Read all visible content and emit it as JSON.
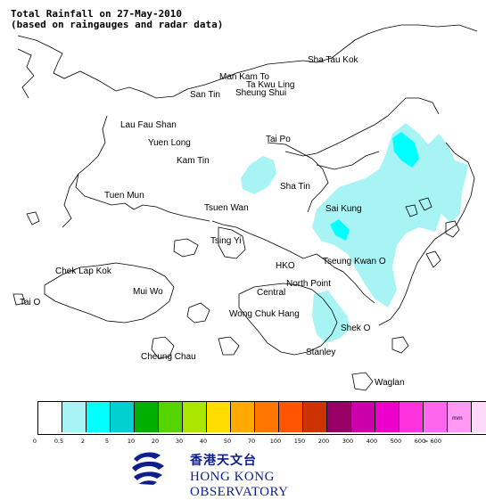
{
  "title": {
    "line1": "Total Rainfall on 27-May-2010",
    "line2": "(based on raingauges and radar data)"
  },
  "places": [
    {
      "id": "sha-tau-kok",
      "label": "Sha Tau Kok"
    },
    {
      "id": "man-kam-to",
      "label": "Man Kam To"
    },
    {
      "id": "ta-kwu-ling",
      "label": "Ta Kwu Ling"
    },
    {
      "id": "san-tin",
      "label": "San Tin"
    },
    {
      "id": "sheung-shui",
      "label": "Sheung Shui"
    },
    {
      "id": "lau-fau-shan",
      "label": "Lau Fau Shan"
    },
    {
      "id": "yuen-long",
      "label": "Yuen Long"
    },
    {
      "id": "tai-po",
      "label": "Tai Po"
    },
    {
      "id": "kam-tin",
      "label": "Kam Tin"
    },
    {
      "id": "sha-tin",
      "label": "Sha Tin"
    },
    {
      "id": "tuen-mun",
      "label": "Tuen Mun"
    },
    {
      "id": "tsuen-wan",
      "label": "Tsuen Wan"
    },
    {
      "id": "sai-kung",
      "label": "Sai Kung"
    },
    {
      "id": "tsing-yi",
      "label": "Tsing Yi"
    },
    {
      "id": "chek-lap-kok",
      "label": "Chek Lap Kok"
    },
    {
      "id": "hko",
      "label": "HKO"
    },
    {
      "id": "tseung-kwan-o",
      "label": "Tseung Kwan O"
    },
    {
      "id": "north-point",
      "label": "North Point"
    },
    {
      "id": "mui-wo",
      "label": "Mui Wo"
    },
    {
      "id": "central",
      "label": "Central"
    },
    {
      "id": "tai-o",
      "label": "Tai O"
    },
    {
      "id": "wong-chuk-hang",
      "label": "Wong Chuk Hang"
    },
    {
      "id": "shek-o",
      "label": "Shek O"
    },
    {
      "id": "cheung-chau",
      "label": "Cheung Chau"
    },
    {
      "id": "stanley",
      "label": "Stanley"
    },
    {
      "id": "waglan",
      "label": "Waglan"
    }
  ],
  "legend": {
    "unit": "mm",
    "colors": [
      "#ffffff",
      "#a8f4f4",
      "#00ffff",
      "#00d0d0",
      "#00b000",
      "#55d400",
      "#aae600",
      "#ffdd00",
      "#ffaa00",
      "#ff7700",
      "#ff5500",
      "#cc3300",
      "#990066",
      "#cc00aa",
      "#ee00cc",
      "#ff33dd",
      "#ff66ee",
      "#ff99f4",
      "#ffdaf8"
    ],
    "ticks": [
      "0",
      "0.5",
      "2",
      "5",
      "10",
      "20",
      "30",
      "40",
      "50",
      "70",
      "100",
      "150",
      "200",
      "300",
      "400",
      "500",
      "600",
      "> 600"
    ]
  },
  "rain_areas": [
    {
      "name": "rain-area-sha-tin-north",
      "level": "0.5–2"
    },
    {
      "name": "rain-area-sai-kung",
      "level": "0.5–2"
    },
    {
      "name": "rain-area-sai-kung-core",
      "level": "2–5"
    },
    {
      "name": "rain-area-east-hk-island",
      "level": "0.5–2"
    }
  ],
  "logo": {
    "cn": "香港天文台",
    "en": "HONG KONG OBSERVATORY"
  }
}
